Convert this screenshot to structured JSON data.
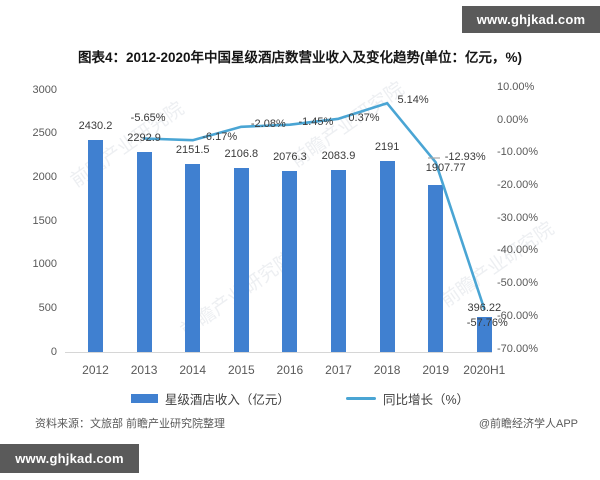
{
  "watermark": {
    "url_top": "www.ghjkad.com",
    "url_bottom": "www.ghjkad.com",
    "chart_bg": "前瞻产业研究院"
  },
  "title": "图表4：2012-2020年中国星级酒店数营业收入及变化趋势(单位：亿元，%)",
  "source_note": "资料来源：文旅部 前瞻产业研究院整理",
  "credit": "@前瞻经济学人APP",
  "chart_data": {
    "type": "bar",
    "subtype": "bar+line combo, dual axis",
    "title": "图表4：2012-2020年中国星级酒店数营业收入及变化趋势(单位：亿元，%)",
    "categories": [
      "2012",
      "2013",
      "2014",
      "2015",
      "2016",
      "2017",
      "2018",
      "2019",
      "2020H1"
    ],
    "series": [
      {
        "name": "星级酒店收入（亿元）",
        "type": "bar",
        "axis": "left",
        "color": "#4080d0",
        "values": [
          2430.2,
          2292.9,
          2151.5,
          2106.8,
          2076.3,
          2083.9,
          2191,
          1907.77,
          396.22
        ],
        "labels": [
          "2430.2",
          "2292.9",
          "2151.5",
          "2106.8",
          "2076.3",
          "2083.9",
          "2191",
          "1907.77",
          "396.22"
        ]
      },
      {
        "name": "同比增长（%）",
        "type": "line",
        "axis": "right",
        "color": "#4aa5d4",
        "values": [
          null,
          -5.65,
          -6.17,
          -2.08,
          -1.45,
          0.37,
          5.14,
          -12.93,
          -57.76
        ],
        "labels": [
          null,
          "-5.65%",
          "-6.17%",
          "-2.08%",
          "-1.45%",
          "0.37%",
          "5.14%",
          "-12.93%",
          "-57.76%"
        ]
      }
    ],
    "left_axis": {
      "min": 0,
      "max": 3000,
      "ticks": [
        "3000",
        "2500",
        "2000",
        "1500",
        "1000",
        "500",
        "0"
      ]
    },
    "right_axis": {
      "min": -70,
      "max": 10,
      "ticks": [
        "10.00%",
        "0.00%",
        "-10.00%",
        "-20.00%",
        "-30.00%",
        "-40.00%",
        "-50.00%",
        "-60.00%",
        "-70.00%"
      ]
    },
    "grid": false,
    "legend": [
      "星级酒店收入（亿元）",
      "同比增长（%）"
    ],
    "legend_position": "bottom"
  }
}
